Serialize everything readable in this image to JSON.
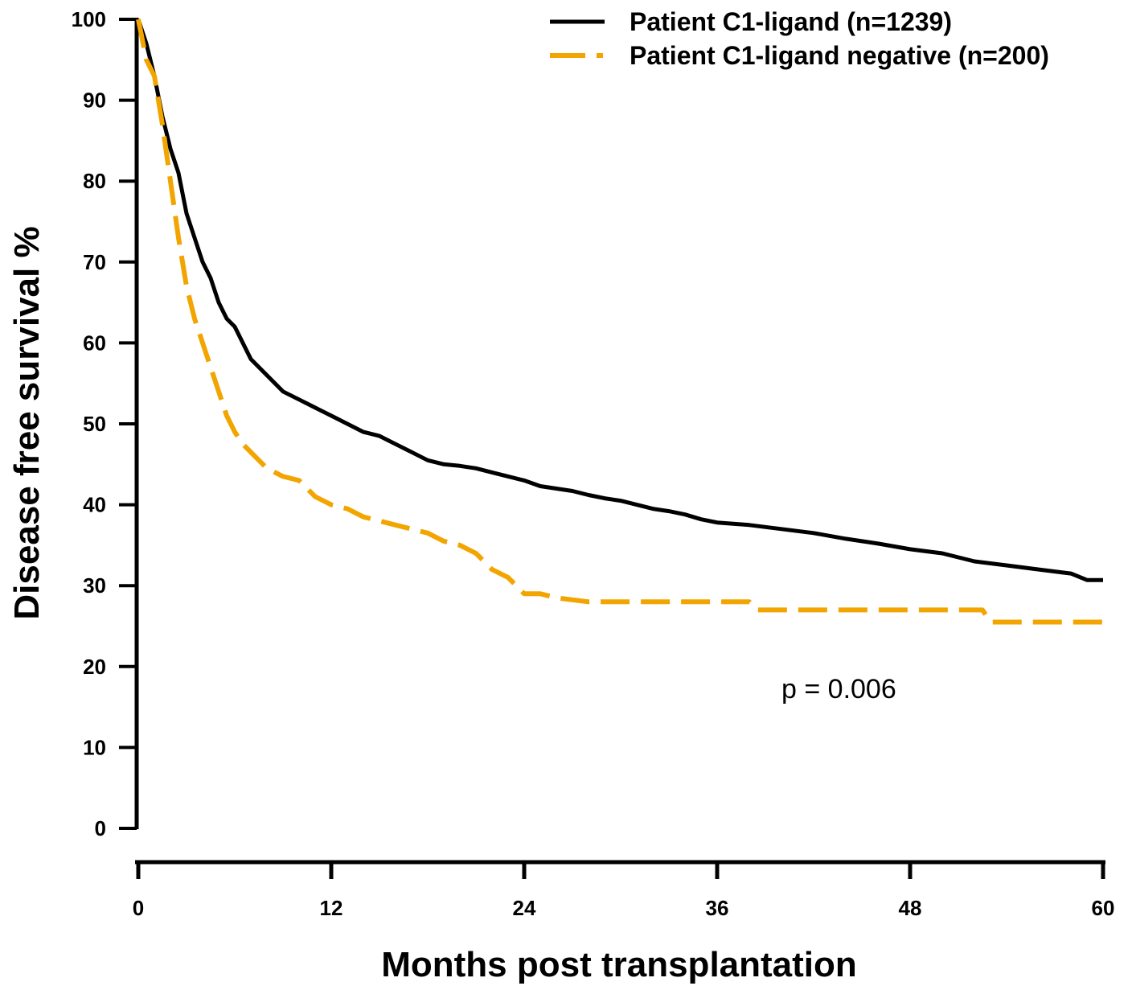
{
  "chart_data": {
    "type": "line",
    "title": "",
    "xlabel": "Months post transplantation",
    "ylabel": "Disease free survival %",
    "xlim": [
      0,
      60
    ],
    "ylim": [
      0,
      100
    ],
    "x_ticks": [
      "0",
      "12",
      "24",
      "36",
      "48",
      "60"
    ],
    "y_ticks": [
      "0",
      "10",
      "20",
      "30",
      "40",
      "50",
      "60",
      "70",
      "80",
      "90",
      "100"
    ],
    "grid": false,
    "legend_position": "top-right",
    "annotation": "p = 0.006",
    "series": [
      {
        "name": "Patient C1-ligand (n=1239)",
        "color": "#000000",
        "style": "solid",
        "x": [
          0,
          0.5,
          1,
          1.5,
          2,
          2.5,
          3,
          3.5,
          4,
          4.5,
          5,
          5.5,
          6,
          7,
          8,
          9,
          10,
          11,
          12,
          13,
          14,
          15,
          16,
          17,
          18,
          19,
          20,
          21,
          22,
          23,
          24,
          25,
          26,
          27,
          28,
          29,
          30,
          31,
          32,
          33,
          34,
          35,
          36,
          38,
          40,
          42,
          44,
          46,
          48,
          50,
          52,
          54,
          56,
          58,
          59,
          60
        ],
        "y": [
          100,
          97,
          93,
          88,
          84,
          81,
          76,
          73,
          70,
          68,
          65,
          63,
          62,
          58,
          56,
          54,
          53,
          52,
          51,
          50,
          49,
          48.5,
          47.5,
          46.5,
          45.5,
          45,
          44.8,
          44.5,
          44,
          43.5,
          43,
          42.3,
          42,
          41.7,
          41.2,
          40.8,
          40.5,
          40,
          39.5,
          39.2,
          38.8,
          38.2,
          37.8,
          37.5,
          37,
          36.5,
          35.8,
          35.2,
          34.5,
          34,
          33,
          32.5,
          32,
          31.5,
          30.7,
          30.7
        ]
      },
      {
        "name": "Patient C1-ligand negative (n=200)",
        "color": "#F2A500",
        "style": "dashed",
        "x": [
          0,
          0.5,
          1,
          1.5,
          2,
          2.5,
          3,
          3.5,
          4,
          4.5,
          5,
          5.5,
          6,
          6.5,
          7,
          7.5,
          8,
          9,
          10,
          11,
          12,
          13,
          14,
          15,
          16,
          17,
          18,
          19,
          20,
          21,
          22,
          23,
          23.5,
          24,
          25,
          26,
          28,
          30,
          32,
          34,
          36,
          38,
          38.5,
          40,
          44,
          48,
          52.5,
          53,
          56,
          60
        ],
        "y": [
          100,
          95,
          93,
          87,
          80,
          73,
          67,
          63,
          60,
          57,
          54,
          51,
          49,
          47.5,
          46.5,
          45.5,
          44.5,
          43.5,
          43,
          41,
          40,
          39.5,
          38.5,
          38,
          37.5,
          37,
          36.5,
          35.5,
          35,
          34,
          32,
          31,
          30,
          29,
          29,
          28.5,
          28,
          28,
          28,
          28,
          28,
          28,
          27,
          27,
          27,
          27,
          27,
          25.5,
          25.5,
          25.5
        ]
      }
    ]
  }
}
